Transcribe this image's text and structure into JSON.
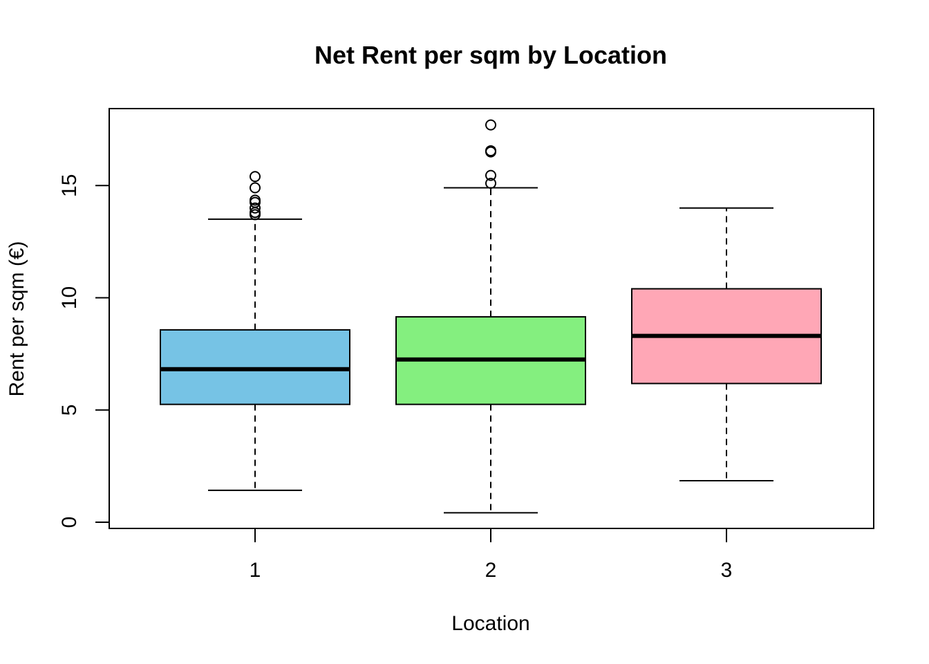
{
  "chart_data": {
    "type": "box",
    "title": "Net Rent per sqm by Location",
    "xlabel": "Location",
    "ylabel": "Rent per sqm (€)",
    "ylim": [
      -0.25,
      18.5
    ],
    "yticks": [
      0,
      5,
      10,
      15
    ],
    "grid": false,
    "legend": "none",
    "categories": [
      "1",
      "2",
      "3"
    ],
    "boxes": [
      {
        "category": "1",
        "whisker_low": 1.42,
        "q1": 5.25,
        "median": 6.82,
        "q3": 8.57,
        "whisker_high": 13.5,
        "outliers": [
          13.7,
          13.8,
          14.0,
          14.25,
          14.35,
          14.9,
          15.4
        ],
        "color": "#76C3E5"
      },
      {
        "category": "2",
        "whisker_low": 0.42,
        "q1": 5.25,
        "median": 7.25,
        "q3": 9.15,
        "whisker_high": 14.9,
        "outliers": [
          15.1,
          15.45,
          16.5,
          16.55,
          17.7
        ],
        "color": "#84EF7F"
      },
      {
        "category": "3",
        "whisker_low": 1.85,
        "q1": 6.18,
        "median": 8.3,
        "q3": 10.4,
        "whisker_high": 14.0,
        "outliers": [],
        "color": "#FFA7B6"
      }
    ]
  }
}
